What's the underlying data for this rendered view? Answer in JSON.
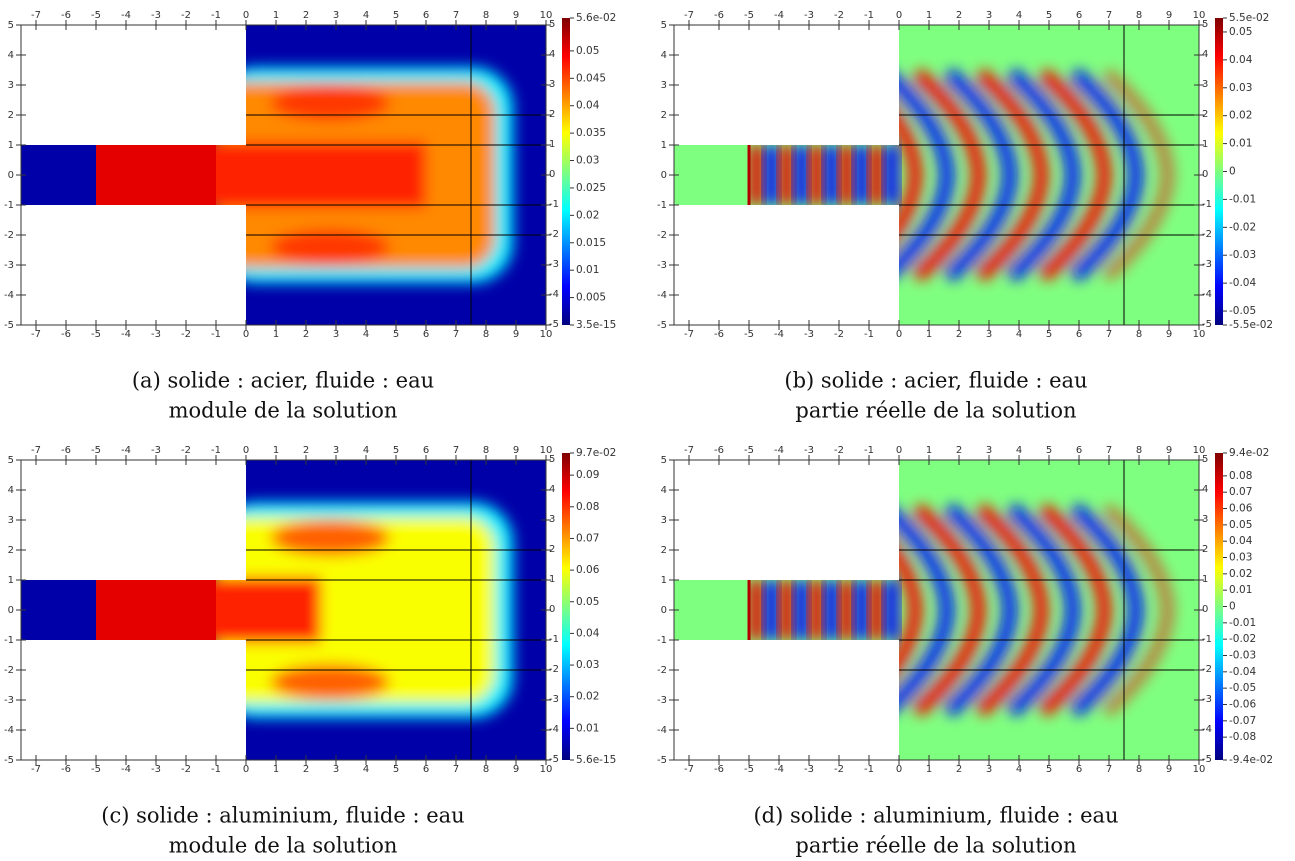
{
  "axes": {
    "xlim": [
      -7.5,
      10
    ],
    "ylim": [
      -5,
      5
    ],
    "xticks": [
      -7,
      -6,
      -5,
      -4,
      -3,
      -2,
      -1,
      0,
      1,
      2,
      3,
      4,
      5,
      6,
      7,
      8,
      9,
      10
    ],
    "yticks": [
      -5,
      -4,
      -3,
      -2,
      -1,
      0,
      1,
      2,
      3,
      4,
      5
    ]
  },
  "colormap": [
    "#00007f",
    "#0000ff",
    "#007fff",
    "#00ffff",
    "#7fff7f",
    "#ffff00",
    "#ff7f00",
    "#ff0000",
    "#7f0000"
  ],
  "panels": [
    {
      "caption": "(a) solide : acier, fluide : eau",
      "subcaption": "module de la solution",
      "colorbar": {
        "range": [
          3.5e-15,
          0.056
        ],
        "ticks": [
          {
            "value": 0.056,
            "label": "5.6e-02"
          },
          0.05,
          0.045,
          0.04,
          0.035,
          0.03,
          0.025,
          0.02,
          0.015,
          0.01,
          0.005,
          {
            "value": 3.5e-15,
            "label": "3.5e-15"
          }
        ]
      }
    },
    {
      "caption": "(b) solide : acier, fluide : eau",
      "subcaption": "partie réelle de la solution",
      "colorbar": {
        "range": [
          -0.055,
          0.055
        ],
        "ticks": [
          {
            "value": 0.055,
            "label": "5.5e-02"
          },
          0.05,
          0.04,
          0.03,
          0.02,
          0.01,
          0,
          -0.01,
          -0.02,
          -0.03,
          -0.04,
          -0.05,
          {
            "value": -0.055,
            "label": "-5.5e-02"
          }
        ]
      }
    },
    {
      "caption": "(c) solide : aluminium, fluide : eau",
      "subcaption": "module de la solution",
      "colorbar": {
        "range": [
          5.6e-15,
          0.097
        ],
        "ticks": [
          {
            "value": 0.097,
            "label": "9.7e-02"
          },
          0.09,
          0.08,
          0.07,
          0.06,
          0.05,
          0.04,
          0.03,
          0.02,
          0.01,
          {
            "value": 5.6e-15,
            "label": "5.6e-15"
          }
        ]
      }
    },
    {
      "caption": "(d) solide : aluminium, fluide : eau",
      "subcaption": "partie réelle de la solution",
      "colorbar": {
        "range": [
          -0.094,
          0.094
        ],
        "ticks": [
          {
            "value": 0.094,
            "label": "9.4e-02"
          },
          0.08,
          0.07,
          0.06,
          0.05,
          0.04,
          0.03,
          0.02,
          0.01,
          0,
          -0.01,
          -0.02,
          -0.03,
          -0.04,
          -0.05,
          -0.06,
          -0.07,
          -0.08,
          {
            "value": -0.094,
            "label": "-9.4e-02"
          }
        ]
      }
    }
  ]
}
